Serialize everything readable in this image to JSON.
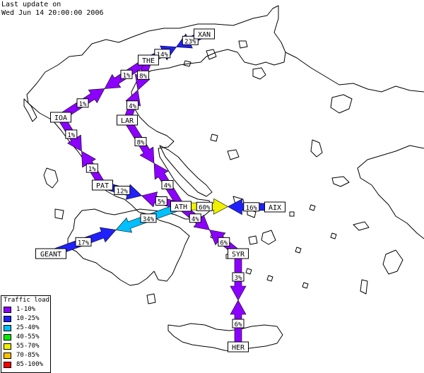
{
  "header": {
    "line1": "Last update on",
    "line2": "Wed Jun 14 20:00:00 2006"
  },
  "legend": {
    "title": "Traffic load",
    "items": [
      {
        "label": "1-10%",
        "color": "#8c00ff"
      },
      {
        "label": "10-25%",
        "color": "#2020ff"
      },
      {
        "label": "25-40%",
        "color": "#00c0ff"
      },
      {
        "label": "40-55%",
        "color": "#00f000"
      },
      {
        "label": "55-70%",
        "color": "#f0f000"
      },
      {
        "label": "70-85%",
        "color": "#ffc000"
      },
      {
        "label": "85-100%",
        "color": "#ff0000"
      }
    ]
  },
  "nodes": [
    "XAN",
    "THE",
    "IOA",
    "LAR",
    "PAT",
    "ATH",
    "AIX",
    "GEANT",
    "SYR",
    "HER"
  ],
  "links": [
    {
      "from": "THE",
      "to": "XAN",
      "load": "14%",
      "color": "#2020ff"
    },
    {
      "from": "XAN",
      "to": "THE",
      "load": "23%",
      "color": "#2020ff"
    },
    {
      "from": "IOA",
      "to": "THE",
      "load": "1%",
      "color": "#8c00ff"
    },
    {
      "from": "THE",
      "to": "IOA",
      "load": "1%",
      "color": "#8c00ff"
    },
    {
      "from": "THE",
      "to": "LAR",
      "load": "8%",
      "color": "#8c00ff"
    },
    {
      "from": "LAR",
      "to": "THE",
      "load": "4%",
      "color": "#8c00ff"
    },
    {
      "from": "IOA",
      "to": "PAT",
      "load": "1%",
      "color": "#8c00ff"
    },
    {
      "from": "PAT",
      "to": "IOA",
      "load": "1%",
      "color": "#8c00ff"
    },
    {
      "from": "LAR",
      "to": "ATH",
      "load": "8%",
      "color": "#8c00ff"
    },
    {
      "from": "ATH",
      "to": "LAR",
      "load": "4%",
      "color": "#8c00ff"
    },
    {
      "from": "PAT",
      "to": "ATH",
      "load": "12%",
      "color": "#2020ff"
    },
    {
      "from": "ATH",
      "to": "PAT",
      "load": "5%",
      "color": "#8c00ff"
    },
    {
      "from": "ATH",
      "to": "AIX",
      "load": "60%",
      "color": "#f0f000"
    },
    {
      "from": "AIX",
      "to": "ATH",
      "load": "16%",
      "color": "#2020ff"
    },
    {
      "from": "GEANT",
      "to": "ATH",
      "load": "17%",
      "color": "#2020ff"
    },
    {
      "from": "ATH",
      "to": "GEANT",
      "load": "34%",
      "color": "#00c0ff"
    },
    {
      "from": "ATH",
      "to": "SYR",
      "load": "4%",
      "color": "#8c00ff"
    },
    {
      "from": "SYR",
      "to": "ATH",
      "load": "6%",
      "color": "#8c00ff"
    },
    {
      "from": "SYR",
      "to": "HER",
      "load": "3%",
      "color": "#8c00ff"
    },
    {
      "from": "HER",
      "to": "SYR",
      "load": "6%",
      "color": "#8c00ff"
    }
  ]
}
